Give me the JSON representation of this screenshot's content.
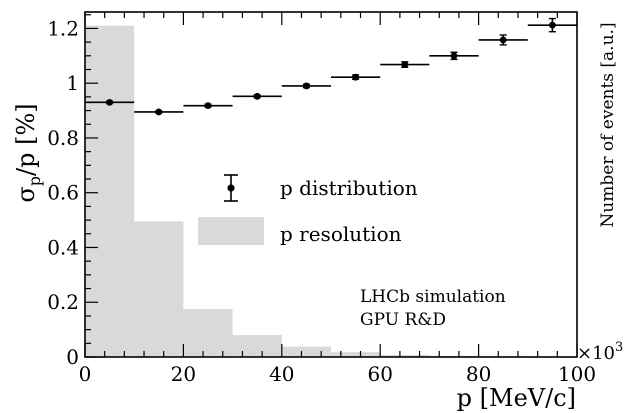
{
  "chart_data": {
    "type": "bar",
    "x_range": [
      0,
      100
    ],
    "y_range": [
      0,
      1.26
    ],
    "grid": false,
    "legend_placement": "center",
    "x_ticks": [
      "0",
      "20",
      "40",
      "60",
      "80",
      "100"
    ],
    "y_ticks": [
      "0",
      "0.2",
      "0.4",
      "0.6",
      "0.8",
      "1",
      "1.2"
    ],
    "xlabel": "p [MeV/c]",
    "ylabel_main": "σ",
    "ylabel_sub": "p",
    "ylabel_rest": "/p [%]",
    "right_ylabel": "Number of events [a.u.]",
    "x_multiplier_base": "×10",
    "x_multiplier_exp": "3",
    "annotations": [
      "LHCb simulation",
      "GPU R&D"
    ],
    "series": [
      {
        "name": "p distribution",
        "kind": "histogram",
        "color": "#d9d9d9",
        "bin_edges": [
          0,
          10,
          20,
          30,
          40,
          50,
          60,
          70,
          80,
          90,
          100
        ],
        "values": [
          1.21,
          0.495,
          0.175,
          0.08,
          0.038,
          0.018,
          0.008,
          0.004,
          0.002,
          0.001
        ]
      },
      {
        "name": "p resolution",
        "kind": "errorbar",
        "color": "#000000",
        "x": [
          5,
          15,
          25,
          35,
          45,
          55,
          65,
          75,
          85,
          95
        ],
        "x_halfwidth": 5,
        "y": [
          0.93,
          0.895,
          0.918,
          0.952,
          0.99,
          1.022,
          1.068,
          1.1,
          1.158,
          1.212
        ],
        "y_err": [
          0.004,
          0.004,
          0.005,
          0.005,
          0.006,
          0.008,
          0.01,
          0.013,
          0.018,
          0.024
        ]
      }
    ]
  }
}
